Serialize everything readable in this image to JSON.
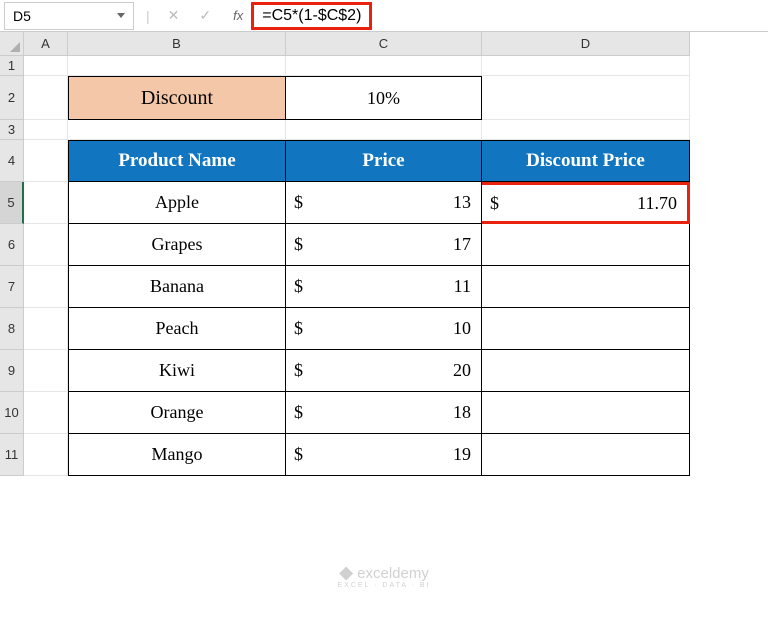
{
  "formula_bar": {
    "name_box": "D5",
    "formula": "=C5*(1-$C$2)"
  },
  "columns": [
    "A",
    "B",
    "C",
    "D"
  ],
  "rows": [
    "1",
    "2",
    "3",
    "4",
    "5",
    "6",
    "7",
    "8",
    "9",
    "10",
    "11"
  ],
  "discount": {
    "label": "Discount",
    "value": "10%"
  },
  "table": {
    "headers": {
      "product": "Product Name",
      "price": "Price",
      "discount_price": "Discount Price"
    },
    "data": [
      {
        "product": "Apple",
        "price_sym": "$",
        "price": "13",
        "dp_sym": "$",
        "dprice": "11.70"
      },
      {
        "product": "Grapes",
        "price_sym": "$",
        "price": "17",
        "dp_sym": "",
        "dprice": ""
      },
      {
        "product": "Banana",
        "price_sym": "$",
        "price": "11",
        "dp_sym": "",
        "dprice": ""
      },
      {
        "product": "Peach",
        "price_sym": "$",
        "price": "10",
        "dp_sym": "",
        "dprice": ""
      },
      {
        "product": "Kiwi",
        "price_sym": "$",
        "price": "20",
        "dp_sym": "",
        "dprice": ""
      },
      {
        "product": "Orange",
        "price_sym": "$",
        "price": "18",
        "dp_sym": "",
        "dprice": ""
      },
      {
        "product": "Mango",
        "price_sym": "$",
        "price": "19",
        "dp_sym": "",
        "dprice": ""
      }
    ]
  },
  "colors": {
    "header_bg": "#1175bf",
    "discount_bg": "#f4c7a8",
    "highlight_border": "#e8220d",
    "grid_head": "#e6e6e6"
  },
  "watermark": {
    "line1": "exceldemy",
    "line2": "EXCEL · DATA · BI"
  }
}
